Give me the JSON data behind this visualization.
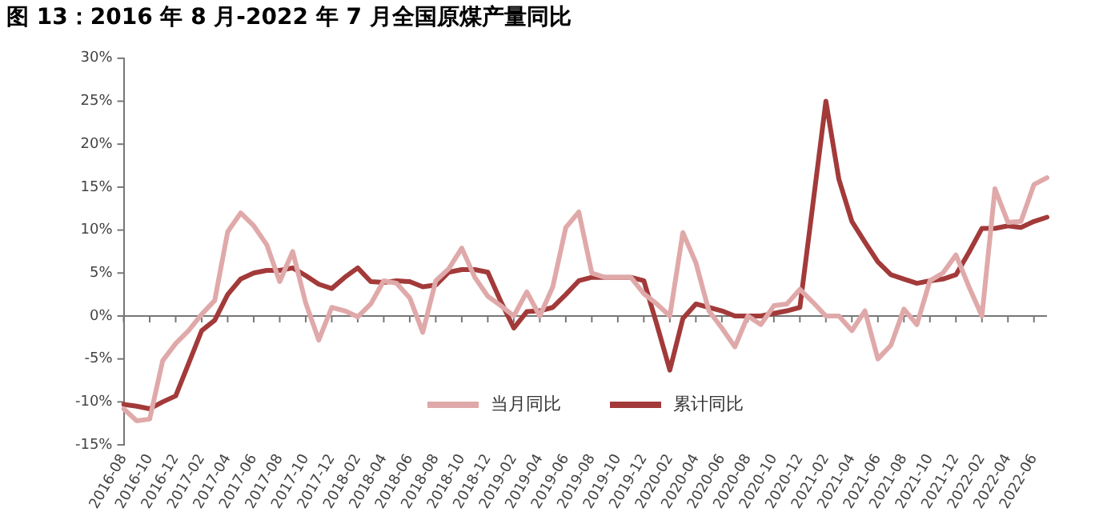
{
  "chart_data": {
    "type": "line",
    "title": "图 13：2016 年 8 月-2022 年 7 月全国原煤产量同比",
    "categories": [
      "2016-08",
      null,
      "2016-10",
      null,
      "2016-12",
      null,
      "2017-02",
      null,
      "2017-04",
      null,
      "2017-06",
      null,
      "2017-08",
      null,
      "2017-10",
      null,
      "2017-12",
      null,
      "2018-02",
      null,
      "2018-04",
      null,
      "2018-06",
      null,
      "2018-08",
      null,
      "2018-10",
      null,
      "2018-12",
      null,
      "2019-02",
      null,
      "2019-04",
      null,
      "2019-06",
      null,
      "2019-08",
      null,
      "2019-10",
      null,
      "2019-12",
      null,
      "2020-02",
      null,
      "2020-04",
      null,
      "2020-06",
      null,
      "2020-08",
      null,
      "2020-10",
      null,
      "2020-12",
      null,
      "2021-02",
      null,
      "2021-04",
      null,
      "2021-06",
      null,
      "2021-08",
      null,
      "2021-10",
      null,
      "2021-12",
      null,
      "2022-02",
      null,
      "2022-04",
      null,
      "2022-06",
      null
    ],
    "series": [
      {
        "name": "当月同比",
        "color": "#e0a9a9",
        "values": [
          -10.8,
          -12.2,
          -12.0,
          -5.2,
          -3.2,
          -1.7,
          0.2,
          1.8,
          9.8,
          12.0,
          10.5,
          8.3,
          4.0,
          7.5,
          1.5,
          -2.8,
          1.0,
          0.6,
          -0.1,
          1.4,
          4.1,
          3.8,
          2.1,
          -1.9,
          4.1,
          5.5,
          7.9,
          4.5,
          2.3,
          1.2,
          0.0,
          2.8,
          0.0,
          3.4,
          10.3,
          12.1,
          5.0,
          4.5,
          4.5,
          4.5,
          2.6,
          1.4,
          0.0,
          9.7,
          6.2,
          0.6,
          -1.4,
          -3.6,
          0.0,
          -1.0,
          1.2,
          1.4,
          3.1,
          1.6,
          0.0,
          0.0,
          -1.7,
          0.6,
          -5.0,
          -3.4,
          0.8,
          -1.0,
          4.1,
          5.0,
          7.1,
          3.4,
          0.0,
          14.8,
          10.9,
          11.0,
          15.3,
          16.1
        ]
      },
      {
        "name": "累计同比",
        "color": "#a33a3a",
        "values": [
          -10.3,
          -10.5,
          -10.8,
          -10.0,
          -9.3,
          -5.5,
          -1.7,
          -0.5,
          2.5,
          4.3,
          5.0,
          5.3,
          5.3,
          5.6,
          4.7,
          3.7,
          3.2,
          4.5,
          5.6,
          4.0,
          3.9,
          4.1,
          4.0,
          3.4,
          3.6,
          5.1,
          5.4,
          5.4,
          5.1,
          1.7,
          -1.4,
          0.5,
          0.6,
          1.0,
          2.5,
          4.1,
          4.5,
          4.5,
          4.5,
          4.5,
          4.1,
          -1.0,
          -6.3,
          -0.3,
          1.4,
          1.0,
          0.6,
          0.0,
          0.0,
          0.0,
          0.3,
          0.6,
          1.0,
          13.0,
          25.0,
          15.9,
          11.0,
          8.6,
          6.3,
          4.8,
          4.3,
          3.8,
          4.1,
          4.3,
          4.8,
          7.4,
          10.2,
          10.2,
          10.5,
          10.3,
          11.0,
          11.5
        ]
      }
    ],
    "ylim": [
      -15,
      30
    ],
    "yticks": [
      {
        "value": -15,
        "label": "-15%"
      },
      {
        "value": -10,
        "label": "-10%"
      },
      {
        "value": -5,
        "label": "-5%"
      },
      {
        "value": 0,
        "label": "0%"
      },
      {
        "value": 5,
        "label": "5%"
      },
      {
        "value": 10,
        "label": "10%"
      },
      {
        "value": 15,
        "label": "15%"
      },
      {
        "value": 20,
        "label": "20%"
      },
      {
        "value": 25,
        "label": "25%"
      },
      {
        "value": 30,
        "label": "30%"
      }
    ],
    "ref_lines": [
      {
        "axis": "y",
        "value": 0,
        "color": "#777777"
      }
    ],
    "grid": false,
    "legend": "bottom",
    "marker": "none",
    "line_style": "solid"
  }
}
